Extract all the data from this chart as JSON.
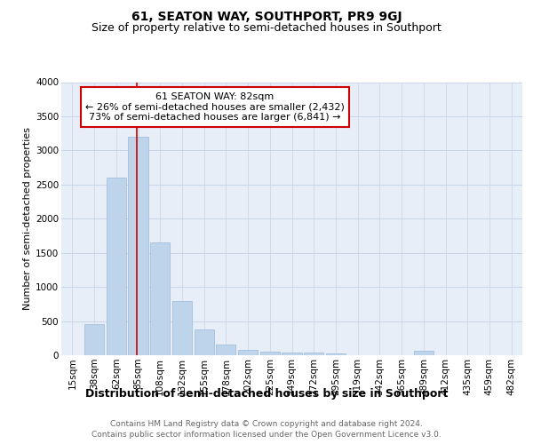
{
  "title": "61, SEATON WAY, SOUTHPORT, PR9 9GJ",
  "subtitle": "Size of property relative to semi-detached houses in Southport",
  "xlabel": "Distribution of semi-detached houses by size in Southport",
  "ylabel": "Number of semi-detached properties",
  "footnote1": "Contains HM Land Registry data © Crown copyright and database right 2024.",
  "footnote2": "Contains public sector information licensed under the Open Government Licence v3.0.",
  "bin_labels": [
    "15sqm",
    "38sqm",
    "62sqm",
    "85sqm",
    "108sqm",
    "132sqm",
    "155sqm",
    "178sqm",
    "202sqm",
    "225sqm",
    "249sqm",
    "272sqm",
    "295sqm",
    "319sqm",
    "342sqm",
    "365sqm",
    "389sqm",
    "412sqm",
    "435sqm",
    "459sqm",
    "482sqm"
  ],
  "bar_values": [
    5,
    450,
    2600,
    3200,
    1650,
    800,
    380,
    160,
    80,
    55,
    45,
    35,
    25,
    0,
    0,
    0,
    60,
    0,
    0,
    0,
    0
  ],
  "bar_color": "#bdd4ea",
  "bar_edge_color": "#9ab8d8",
  "property_label": "61 SEATON WAY: 82sqm",
  "pct_smaller": 26,
  "pct_smaller_n": "2,432",
  "pct_larger": 73,
  "pct_larger_n": "6,841",
  "vline_color": "#cc0000",
  "annotation_box_color": "#cc0000",
  "ylim": [
    0,
    4000
  ],
  "yticks": [
    0,
    500,
    1000,
    1500,
    2000,
    2500,
    3000,
    3500,
    4000
  ],
  "grid_color": "#c8d4e8",
  "bg_color": "#e8eef8",
  "title_fontsize": 10,
  "subtitle_fontsize": 9,
  "xlabel_fontsize": 9,
  "ylabel_fontsize": 8,
  "tick_fontsize": 7.5,
  "annot_fontsize": 8,
  "footnote_fontsize": 6.5
}
